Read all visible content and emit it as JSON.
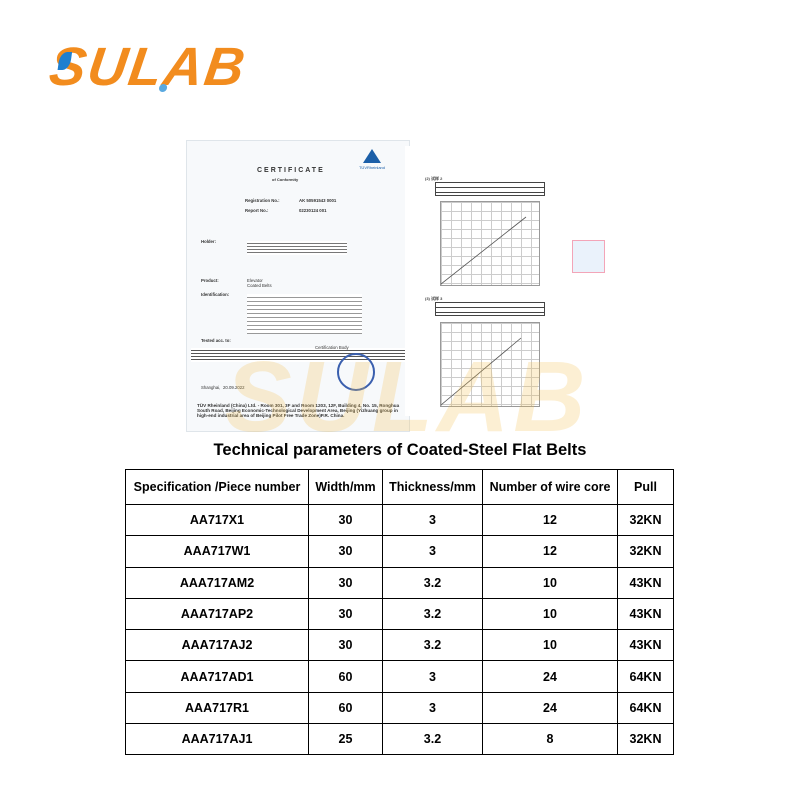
{
  "logo": {
    "text": "SULAB",
    "colors": {
      "primary": "#f28c1e",
      "accent": "#1e7fd0"
    }
  },
  "certificate": {
    "title": "CERTIFICATE",
    "subtitle": "of Conformity",
    "brand": "TÜVRheinland",
    "registration_label": "Registration No.:",
    "registration_value": "AK 50591543 0001",
    "report_label": "Report No.:",
    "report_value": "02230124 001",
    "holder_label": "Holder:",
    "product_label": "Product:",
    "product_value": "Elevator Coated Belts",
    "identification_label": "Identification:",
    "tested_label": "Tested acc. to:",
    "place_label": "Shanghai,",
    "date": "20.09.2022",
    "cert_body_label": "Certification Body",
    "footer": "TÜV Rheinland (China) Ltd. - Room 301, 3F and Room 1203, 12F, Building 4, No. 15, Ronghua South Road, Beijing Economic-Technological Development Area, Beijing (Yizhuang group in high-end industrial area of Beijing Pilot Free Trade Zone)P.R. China."
  },
  "test_report": {
    "section1": "(2) 试样 2",
    "section2": "(3) 试样 3"
  },
  "watermark": "SULAB",
  "table": {
    "title": "Technical parameters of Coated-Steel Flat Belts",
    "headers": [
      "Specification /Piece number",
      "Width/mm",
      "Thickness/mm",
      "Number of wire core",
      "Pull"
    ],
    "rows": [
      [
        "AA717X1",
        "30",
        "3",
        "12",
        "32KN"
      ],
      [
        "AAA717W1",
        "30",
        "3",
        "12",
        "32KN"
      ],
      [
        "AAA717AM2",
        "30",
        "3.2",
        "10",
        "43KN"
      ],
      [
        "AAA717AP2",
        "30",
        "3.2",
        "10",
        "43KN"
      ],
      [
        "AAA717AJ2",
        "30",
        "3.2",
        "10",
        "43KN"
      ],
      [
        "AAA717AD1",
        "60",
        "3",
        "24",
        "64KN"
      ],
      [
        "AAA717R1",
        "60",
        "3",
        "24",
        "64KN"
      ],
      [
        "AAA717AJ1",
        "25",
        "3.2",
        "8",
        "32KN"
      ]
    ]
  }
}
